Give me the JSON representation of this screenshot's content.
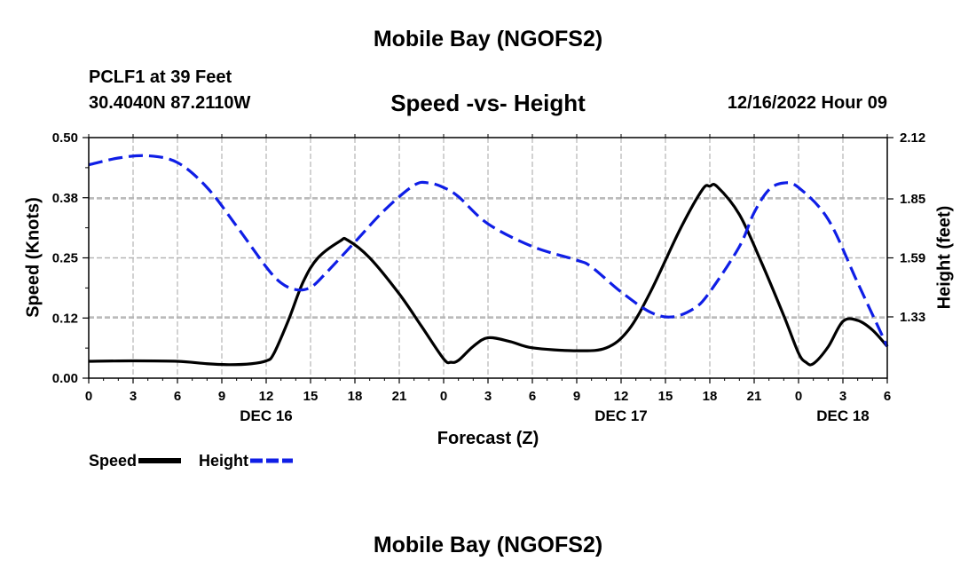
{
  "chart_data": {
    "type": "line",
    "title": "Mobile Bay (NGOFS2)",
    "subtitle": "Speed -vs- Height",
    "station": "PCLF1 at 39 Feet",
    "coordinates": "30.4040N  87.2110W",
    "datetime": "12/16/2022 Hour 09",
    "footer_title": "Mobile Bay (NGOFS2)",
    "xlabel": "Forecast (Z)",
    "ylabel_left": "Speed (Knots)",
    "ylabel_right": "Height (feet)",
    "x_unit": "hours from 2022-12-16 00Z",
    "xlim": [
      0,
      54
    ],
    "ylim_left": [
      0,
      0.5
    ],
    "ylim_right": [
      1.06,
      2.12
    ],
    "x_ticks": [
      0,
      3,
      6,
      9,
      12,
      15,
      18,
      21,
      24,
      27,
      30,
      33,
      36,
      39,
      42,
      45,
      48,
      51,
      54
    ],
    "x_tick_labels": [
      "0",
      "3",
      "6",
      "9",
      "12",
      "15",
      "18",
      "21",
      "0",
      "3",
      "6",
      "9",
      "12",
      "15",
      "18",
      "21",
      "0",
      "3",
      "6"
    ],
    "date_labels": [
      {
        "x": 12,
        "label": "DEC 16"
      },
      {
        "x": 36,
        "label": "DEC 17"
      },
      {
        "x": 51,
        "label": "DEC 18"
      }
    ],
    "y_ticks_left": [
      0.0,
      0.125,
      0.25,
      0.375,
      0.5
    ],
    "y_tick_labels_left": [
      "0.00",
      "0.12",
      "0.25",
      "0.38",
      "0.50"
    ],
    "y_ticks_right": [
      1.33,
      1.59,
      1.85,
      2.12
    ],
    "y_tick_labels_right": [
      "1.33",
      "1.59",
      "1.85",
      "2.12"
    ],
    "grid": true,
    "legend_position": "bottom-left",
    "series": [
      {
        "name": "Speed",
        "axis": "left",
        "color": "#000000",
        "style": "solid",
        "x": [
          0,
          3,
          6,
          8,
          9.5,
          11,
          12,
          12.5,
          13.5,
          14.5,
          15.5,
          17,
          17.5,
          19,
          21,
          22.5,
          24,
          24.5,
          25,
          26,
          27,
          28.5,
          30,
          33,
          35,
          36.5,
          38,
          40,
          41.5,
          42,
          42.5,
          44,
          45.5,
          47,
          48,
          48.5,
          49,
          50,
          51,
          52,
          53,
          54
        ],
        "y": [
          0.035,
          0.036,
          0.035,
          0.03,
          0.028,
          0.03,
          0.036,
          0.05,
          0.12,
          0.2,
          0.25,
          0.285,
          0.287,
          0.25,
          0.175,
          0.108,
          0.04,
          0.033,
          0.037,
          0.066,
          0.084,
          0.076,
          0.063,
          0.057,
          0.063,
          0.1,
          0.18,
          0.31,
          0.392,
          0.399,
          0.398,
          0.34,
          0.24,
          0.13,
          0.052,
          0.033,
          0.03,
          0.065,
          0.118,
          0.12,
          0.1,
          0.066
        ]
      },
      {
        "name": "Height",
        "axis": "right",
        "color": "#0f1ee6",
        "style": "dashed",
        "x": [
          0,
          2,
          4,
          6,
          8,
          10,
          12,
          13,
          14,
          15,
          16,
          18,
          20,
          22,
          23,
          24,
          25,
          27,
          30,
          33,
          34,
          36,
          38,
          39.5,
          41,
          42,
          44,
          45,
          46,
          47,
          48,
          50,
          52,
          54
        ],
        "y": [
          2.0,
          2.03,
          2.04,
          2.01,
          1.9,
          1.73,
          1.55,
          1.48,
          1.45,
          1.46,
          1.52,
          1.66,
          1.8,
          1.91,
          1.92,
          1.9,
          1.86,
          1.74,
          1.64,
          1.58,
          1.55,
          1.44,
          1.35,
          1.33,
          1.37,
          1.44,
          1.64,
          1.79,
          1.89,
          1.92,
          1.9,
          1.76,
          1.48,
          1.2
        ]
      }
    ]
  },
  "legend": {
    "items": [
      {
        "label": "Speed",
        "color": "#000000",
        "style": "solid"
      },
      {
        "label": "Height",
        "color": "#0f1ee6",
        "style": "dashed"
      }
    ]
  }
}
